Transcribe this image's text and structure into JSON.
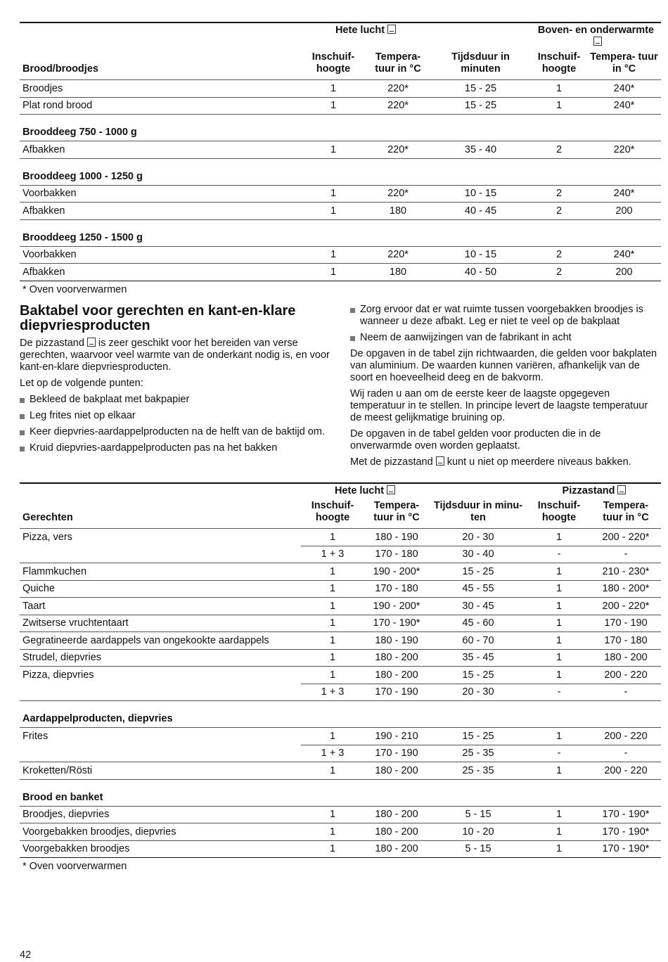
{
  "table1": {
    "groups": [
      "Hete lucht",
      "Boven- en onderwarmte"
    ],
    "columns": [
      "Brood/broodjes",
      "Inschuif- hoogte",
      "Tempera- tuur in °C",
      "Tijdsduur in minuten",
      "Inschuif- hoogte",
      "Tempera- tuur in °C"
    ],
    "rows": [
      {
        "cells": [
          "Broodjes",
          "1",
          "220*",
          "15 - 25",
          "1",
          "240*"
        ]
      },
      {
        "cells": [
          "Plat rond brood",
          "1",
          "220*",
          "15 - 25",
          "1",
          "240*"
        ]
      },
      {
        "section": "Brooddeeg 750 - 1000 g"
      },
      {
        "cells": [
          "Afbakken",
          "1",
          "220*",
          "35 - 40",
          "2",
          "220*"
        ]
      },
      {
        "section": "Brooddeeg 1000 - 1250 g"
      },
      {
        "cells": [
          "Voorbakken",
          "1",
          "220*",
          "10 - 15",
          "2",
          "240*"
        ]
      },
      {
        "cells": [
          "Afbakken",
          "1",
          "180",
          "40 - 45",
          "2",
          "200"
        ]
      },
      {
        "section": "Brooddeeg 1250 - 1500 g"
      },
      {
        "cells": [
          "Voorbakken",
          "1",
          "220*",
          "10 - 15",
          "2",
          "240*"
        ]
      },
      {
        "cells": [
          "Afbakken",
          "1",
          "180",
          "40 - 50",
          "2",
          "200"
        ]
      }
    ],
    "footnote": "* Oven voorverwarmen"
  },
  "section": {
    "heading": "Baktabel voor gerechten en kant-en-klare diepvriesproducten",
    "intro": [
      "De pizzastand",
      "is zeer geschikt voor het bereiden van verse gerechten, waarvoor veel warmte van de onderkant nodig is, en voor kant-en-klare diepvriesproducten."
    ],
    "note": "Let op de volgende punten:",
    "bullets_left": [
      "Bekleed de bakplaat met bakpapier",
      "Leg frites niet op elkaar",
      "Keer diepvries-aardappelproducten na de helft van de baktijd om.",
      "Kruid diepvries-aardappelproducten pas na het bakken"
    ],
    "bullets_right": [
      "Zorg ervoor dat er wat ruimte tussen voorgebakken broodjes is wanneer u deze afbakt. Leg er niet te veel op de bakplaat",
      "Neem de aanwijzingen van de fabrikant in acht"
    ],
    "paragraphs": [
      "De opgaven in de tabel zijn richtwaarden, die gelden voor bakplaten van aluminium. De waarden kunnen variëren, afhankelijk van de soort en hoeveelheid deeg en de bakvorm.",
      "Wij raden u aan om de eerste keer de laagste opgegeven temperatuur in te stellen. In principe levert de laagste temperatuur de meest gelijkmatige bruining op.",
      "De opgaven in de tabel gelden voor producten die in de onverwarmde oven worden geplaatst."
    ],
    "last": [
      "Met de pizzastand",
      "kunt u niet op meerdere niveaus bakken."
    ]
  },
  "table2": {
    "groups": [
      "Hete lucht",
      "Pizzastand"
    ],
    "columns": [
      "Gerechten",
      "Inschuif- hoogte",
      "Tempera- tuur in °C",
      "Tijdsduur in minu- ten",
      "Inschuif- hoogte",
      "Tempera- tuur in °C"
    ],
    "rows": [
      {
        "cells": [
          "Pizza, vers",
          "1",
          "180 - 190",
          "20 - 30",
          "1",
          "200 - 220*"
        ]
      },
      {
        "cells": [
          null,
          "1 + 3",
          "170 - 180",
          "30 - 40",
          "-",
          "-"
        ]
      },
      {
        "cells": [
          "Flammkuchen",
          "1",
          "190 - 200*",
          "15 - 25",
          "1",
          "210 - 230*"
        ]
      },
      {
        "cells": [
          "Quiche",
          "1",
          "170 - 180",
          "45 - 55",
          "1",
          "180 - 200*"
        ]
      },
      {
        "cells": [
          "Taart",
          "1",
          "190 - 200*",
          "30 - 45",
          "1",
          "200 - 220*"
        ]
      },
      {
        "cells": [
          "Zwitserse vruchtentaart",
          "1",
          "170 - 190*",
          "45 - 60",
          "1",
          "170 - 190"
        ]
      },
      {
        "cells": [
          "Gegratineerde aardappels van ongekookte aardappels",
          "1",
          "180 - 190",
          "60 - 70",
          "1",
          "170 - 180"
        ]
      },
      {
        "cells": [
          "Strudel, diepvries",
          "1",
          "180 - 200",
          "35 - 45",
          "1",
          "180 - 200"
        ]
      },
      {
        "cells": [
          "Pizza, diepvries",
          "1",
          "180 - 200",
          "15 - 25",
          "1",
          "200 - 220"
        ]
      },
      {
        "cells": [
          null,
          "1 + 3",
          "170 - 190",
          "20 - 30",
          "-",
          "-"
        ]
      },
      {
        "section": "Aardappelproducten, diepvries"
      },
      {
        "cells": [
          "Frites",
          "1",
          "190 - 210",
          "15 - 25",
          "1",
          "200 - 220"
        ]
      },
      {
        "cells": [
          null,
          "1 + 3",
          "170 - 190",
          "25 - 35",
          "-",
          "-"
        ]
      },
      {
        "cells": [
          "Kroketten/Rösti",
          "1",
          "180 - 200",
          "25 - 35",
          "1",
          "200 - 220"
        ]
      },
      {
        "section": "Brood en banket"
      },
      {
        "cells": [
          "Broodjes, diepvries",
          "1",
          "180 - 200",
          "5 - 15",
          "1",
          "170 - 190*"
        ]
      },
      {
        "cells": [
          "Voorgebakken broodjes, diepvries",
          "1",
          "180 - 200",
          "10 - 20",
          "1",
          "170 - 190*"
        ]
      },
      {
        "cells": [
          "Voorgebakken broodjes",
          "1",
          "180 - 200",
          "5 - 15",
          "1",
          "170 - 190*"
        ]
      }
    ],
    "footnote": "* Oven voorverwarmen"
  },
  "page_number": "42"
}
